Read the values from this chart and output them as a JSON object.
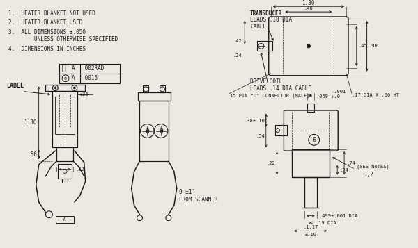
{
  "bg_color": "#ece9e3",
  "line_color": "#1a1a1a",
  "text_color": "#1a1a1a",
  "notes": [
    "1.  HEATER BLANKET NOT USED",
    "2.  HEATER BLANKET USED",
    "3.  ALL DIMENSIONS ±.050",
    "        UNLESS OTHERWISE SPECIFIED",
    "4.  DIMENSIONS IN INCHES"
  ],
  "dims": {
    "1_30_top": "1.30",
    "46": ".46",
    "45": ".45",
    "90": ".90",
    "42": ".42",
    "24": ".24",
    "17_dia": ".17 DIA X .06 HT",
    "drive_coil": "DRIVE COIL",
    "drive_coil2": "LEADS .14 DIA CABLE",
    "connector": "15 PIN \"D\" CONNECTOR (MALE)",
    "069": ".069",
    "069_tol1": "+.0",
    "069_tol2": "-.001",
    "38_10": ".38±.10",
    "54": ".54",
    "22r": ".22",
    "74": ".74",
    "24b": ".24",
    "499": ".499±.001 DIA",
    "19_dia": ".19 DIA",
    "117": ".1.17",
    "pm10": "±.10",
    "from_scanner": "9 ±1\"",
    "from_scanner2": "FROM SCANNER",
    "see_notes": "(SEE NOTES)",
    "notes_12": "1,2",
    "label": "LABEL",
    "25": ".25",
    "22b": ".22",
    "1_30": "1.30",
    "56": ".56",
    "ref_a": "- A -",
    "transducer1": "TRANSDUCER",
    "transducer2": "LEADS .18 DIA",
    "transducer3": "CABLE"
  }
}
